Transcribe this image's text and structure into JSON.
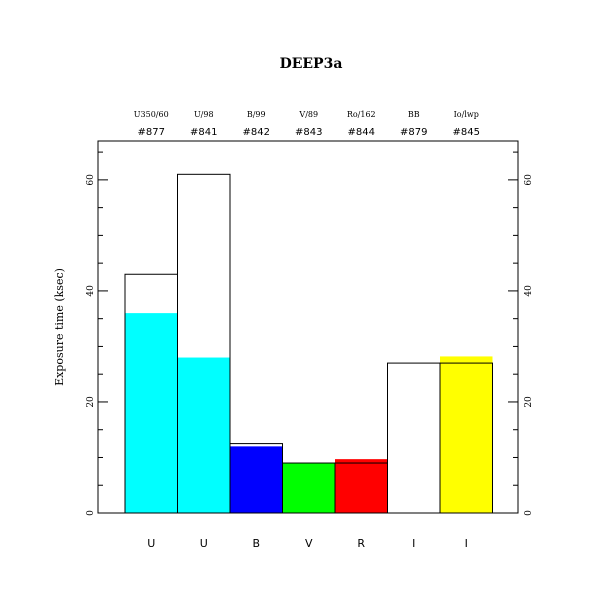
{
  "chart_data": {
    "type": "bar",
    "title": "DEEP3a",
    "xlabel": "",
    "ylabel": "Exposure time (ksec)",
    "ylim": [
      0,
      67
    ],
    "yticks_major": [
      0,
      20,
      40,
      60
    ],
    "yticks_minor_step": 5,
    "grid": false,
    "legend": "none",
    "categories": [
      "U",
      "U",
      "B",
      "V",
      "R",
      "I",
      "I"
    ],
    "filters": [
      "U350/60",
      "U/98",
      "B/99",
      "V/89",
      "Ro/162",
      "BB",
      "Io/lwp"
    ],
    "ids": [
      "#877",
      "#841",
      "#842",
      "#843",
      "#844",
      "#879",
      "#845"
    ],
    "series": [
      {
        "name": "",
        "values": [
          36,
          28,
          12,
          9,
          9.7,
          0,
          28.2
        ]
      },
      {
        "name": "",
        "values": [
          43,
          61,
          12.5,
          9,
          9,
          27,
          27
        ]
      }
    ],
    "colors": [
      "#00ffff",
      "#00ffff",
      "#0000ff",
      "#00ff00",
      "#ff0000",
      "#ffffff",
      "#ffff00"
    ]
  }
}
